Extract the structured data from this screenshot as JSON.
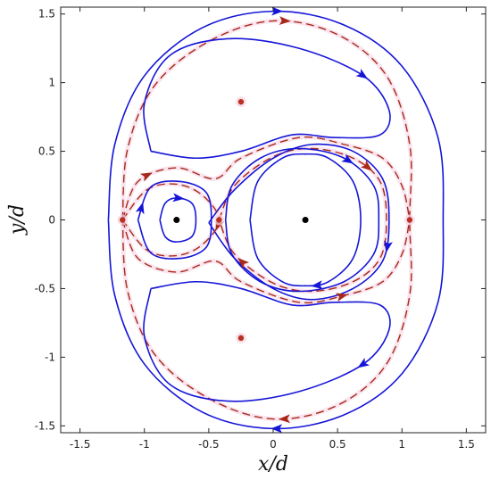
{
  "chart_data": {
    "type": "line",
    "xlabel": "x/d",
    "ylabel": "y/d",
    "xlim": [
      -1.65,
      1.65
    ],
    "ylim": [
      -1.55,
      1.55
    ],
    "xticks": [
      -1.5,
      -1,
      -0.5,
      0,
      0.5,
      1,
      1.5
    ],
    "yticks": [
      -1.5,
      -1,
      -0.5,
      0,
      0.5,
      1,
      1.5
    ],
    "xtick_labels": [
      "-1.5",
      "-1",
      "-0.5",
      "0",
      "0.5",
      "1",
      "1.5"
    ],
    "ytick_labels": [
      "-1.5",
      "-1",
      "-0.5",
      "0",
      "0.5",
      "1",
      "1.5"
    ],
    "grid": false,
    "colors": {
      "solid": "#1515d8",
      "dashed": "#a8281a",
      "vortex": "#000000",
      "stagnation": "#b83222",
      "halo": "#f6d4e4"
    },
    "vortex_points": [
      {
        "x": -0.75,
        "y": 0
      },
      {
        "x": 0.25,
        "y": 0
      }
    ],
    "stagnation_points": [
      {
        "x": -1.17,
        "y": 0
      },
      {
        "x": -0.42,
        "y": 0
      },
      {
        "x": 1.06,
        "y": 0
      },
      {
        "x": -0.25,
        "y": 0.86
      },
      {
        "x": -0.25,
        "y": -0.86
      }
    ],
    "streamlines": [
      {
        "style": "solid",
        "arrows": [
          0.25,
          0.75
        ],
        "points": [
          [
            -1.28,
            0
          ],
          [
            -1.23,
            0.55
          ],
          [
            -1.0,
            1.05
          ],
          [
            -0.55,
            1.4
          ],
          [
            0,
            1.52
          ],
          [
            0.55,
            1.42
          ],
          [
            1.0,
            1.12
          ],
          [
            1.28,
            0.6
          ],
          [
            1.32,
            0
          ],
          [
            1.28,
            -0.6
          ],
          [
            1.0,
            -1.12
          ],
          [
            0.55,
            -1.42
          ],
          [
            0,
            -1.52
          ],
          [
            -0.55,
            -1.4
          ],
          [
            -1.0,
            -1.05
          ],
          [
            -1.23,
            -0.55
          ],
          [
            -1.28,
            0
          ]
        ]
      },
      {
        "style": "dashed",
        "arrows": [
          0.26,
          0.74
        ],
        "points": [
          [
            -1.17,
            0
          ],
          [
            -1.13,
            0.52
          ],
          [
            -0.92,
            0.98
          ],
          [
            -0.5,
            1.3
          ],
          [
            0,
            1.45
          ],
          [
            0.5,
            1.35
          ],
          [
            0.88,
            1.05
          ],
          [
            1.06,
            0.55
          ],
          [
            1.06,
            0
          ],
          [
            1.06,
            -0.55
          ],
          [
            0.88,
            -1.05
          ],
          [
            0.5,
            -1.35
          ],
          [
            0,
            -1.45
          ],
          [
            -0.5,
            -1.3
          ],
          [
            -0.92,
            -0.98
          ],
          [
            -1.13,
            -0.52
          ],
          [
            -1.17,
            0
          ]
        ]
      },
      {
        "style": "solid",
        "arrows": [
          0.5
        ],
        "points": [
          [
            -0.95,
            0.5
          ],
          [
            -1.0,
            0.85
          ],
          [
            -0.8,
            1.2
          ],
          [
            -0.35,
            1.32
          ],
          [
            0.2,
            1.25
          ],
          [
            0.7,
            1.05
          ],
          [
            0.9,
            0.8
          ],
          [
            0.83,
            0.62
          ],
          [
            0.48,
            0.6
          ],
          [
            0.15,
            0.62
          ],
          [
            -0.25,
            0.5
          ],
          [
            -0.6,
            0.45
          ],
          [
            -0.95,
            0.5
          ]
        ]
      },
      {
        "style": "solid",
        "arrows": [
          0.5
        ],
        "points": [
          [
            -0.95,
            -0.5
          ],
          [
            -0.6,
            -0.45
          ],
          [
            -0.25,
            -0.5
          ],
          [
            0.15,
            -0.62
          ],
          [
            0.48,
            -0.6
          ],
          [
            0.83,
            -0.62
          ],
          [
            0.9,
            -0.8
          ],
          [
            0.7,
            -1.05
          ],
          [
            0.2,
            -1.25
          ],
          [
            -0.35,
            -1.32
          ],
          [
            -0.8,
            -1.2
          ],
          [
            -1.0,
            -0.85
          ],
          [
            -0.95,
            -0.5
          ]
        ]
      },
      {
        "style": "dashed",
        "arrows": [
          0.14
        ],
        "points": [
          [
            -1.17,
            0
          ],
          [
            -1.05,
            0.28
          ],
          [
            -0.75,
            0.38
          ],
          [
            -0.45,
            0.3
          ],
          [
            -0.25,
            0.45
          ],
          [
            0.2,
            0.6
          ],
          [
            0.55,
            0.55
          ],
          [
            0.85,
            0.45
          ],
          [
            1.0,
            0.25
          ],
          [
            1.06,
            0
          ]
        ]
      },
      {
        "style": "dashed",
        "arrows": [
          0.7
        ],
        "points": [
          [
            -1.17,
            0
          ],
          [
            -1.05,
            -0.28
          ],
          [
            -0.75,
            -0.38
          ],
          [
            -0.45,
            -0.3
          ],
          [
            -0.25,
            -0.45
          ],
          [
            0.2,
            -0.6
          ],
          [
            0.55,
            -0.55
          ],
          [
            0.85,
            -0.45
          ],
          [
            1.0,
            -0.25
          ],
          [
            1.06,
            0
          ]
        ]
      },
      {
        "style": "dashed",
        "arrows": [
          0.38,
          0.9
        ],
        "points": [
          [
            -0.42,
            0
          ],
          [
            -0.3,
            0.25
          ],
          [
            0,
            0.46
          ],
          [
            0.3,
            0.52
          ],
          [
            0.62,
            0.45
          ],
          [
            0.83,
            0.28
          ],
          [
            0.88,
            0
          ],
          [
            0.83,
            -0.28
          ],
          [
            0.62,
            -0.45
          ],
          [
            0.3,
            -0.52
          ],
          [
            0,
            -0.46
          ],
          [
            -0.3,
            -0.25
          ],
          [
            -0.42,
            0
          ]
        ]
      },
      {
        "style": "solid",
        "arrows": [
          0.55
        ],
        "points": [
          [
            -0.5,
            -0.02
          ],
          [
            -0.3,
            0.22
          ],
          [
            0,
            0.45
          ],
          [
            0.3,
            0.55
          ],
          [
            0.62,
            0.5
          ],
          [
            0.85,
            0.3
          ],
          [
            0.9,
            0
          ],
          [
            0.85,
            -0.3
          ],
          [
            0.62,
            -0.5
          ],
          [
            0.3,
            -0.58
          ],
          [
            0,
            -0.5
          ],
          [
            -0.3,
            -0.28
          ],
          [
            -0.5,
            -0.02
          ]
        ]
      },
      {
        "style": "solid",
        "arrows": [
          0.35
        ],
        "points": [
          [
            -0.37,
            0
          ],
          [
            -0.32,
            0.25
          ],
          [
            -0.1,
            0.45
          ],
          [
            0.2,
            0.52
          ],
          [
            0.55,
            0.45
          ],
          [
            0.78,
            0.25
          ],
          [
            0.82,
            0
          ],
          [
            0.78,
            -0.25
          ],
          [
            0.55,
            -0.45
          ],
          [
            0.2,
            -0.52
          ],
          [
            -0.1,
            -0.45
          ],
          [
            -0.32,
            -0.25
          ],
          [
            -0.37,
            0
          ]
        ]
      },
      {
        "style": "solid",
        "arrows": [
          0.72
        ],
        "points": [
          [
            -0.18,
            0
          ],
          [
            -0.12,
            0.28
          ],
          [
            0.07,
            0.45
          ],
          [
            0.25,
            0.48
          ],
          [
            0.43,
            0.45
          ],
          [
            0.62,
            0.28
          ],
          [
            0.68,
            0
          ],
          [
            0.62,
            -0.28
          ],
          [
            0.43,
            -0.45
          ],
          [
            0.25,
            -0.48
          ],
          [
            0.07,
            -0.45
          ],
          [
            -0.12,
            -0.28
          ],
          [
            -0.18,
            0
          ]
        ]
      },
      {
        "style": "dashed",
        "arrows": [
          0.52
        ],
        "points": [
          [
            -1.17,
            0
          ],
          [
            -0.98,
            0.22
          ],
          [
            -0.75,
            0.26
          ],
          [
            -0.55,
            0.18
          ],
          [
            -0.42,
            0
          ],
          [
            -0.55,
            -0.18
          ],
          [
            -0.75,
            -0.26
          ],
          [
            -0.98,
            -0.22
          ],
          [
            -1.17,
            0
          ]
        ]
      },
      {
        "style": "solid",
        "arrows": [
          0.05
        ],
        "points": [
          [
            -1.05,
            0
          ],
          [
            -0.95,
            0.24
          ],
          [
            -0.72,
            0.28
          ],
          [
            -0.52,
            0.2
          ],
          [
            -0.48,
            0
          ],
          [
            -0.52,
            -0.2
          ],
          [
            -0.72,
            -0.28
          ],
          [
            -0.95,
            -0.24
          ],
          [
            -1.05,
            0
          ]
        ]
      },
      {
        "style": "solid",
        "arrows": [
          0.25
        ],
        "points": [
          [
            -0.88,
            0
          ],
          [
            -0.84,
            0.12
          ],
          [
            -0.75,
            0.16
          ],
          [
            -0.63,
            0.12
          ],
          [
            -0.6,
            0
          ],
          [
            -0.63,
            -0.12
          ],
          [
            -0.75,
            -0.16
          ],
          [
            -0.84,
            -0.12
          ],
          [
            -0.88,
            0
          ]
        ]
      }
    ]
  }
}
